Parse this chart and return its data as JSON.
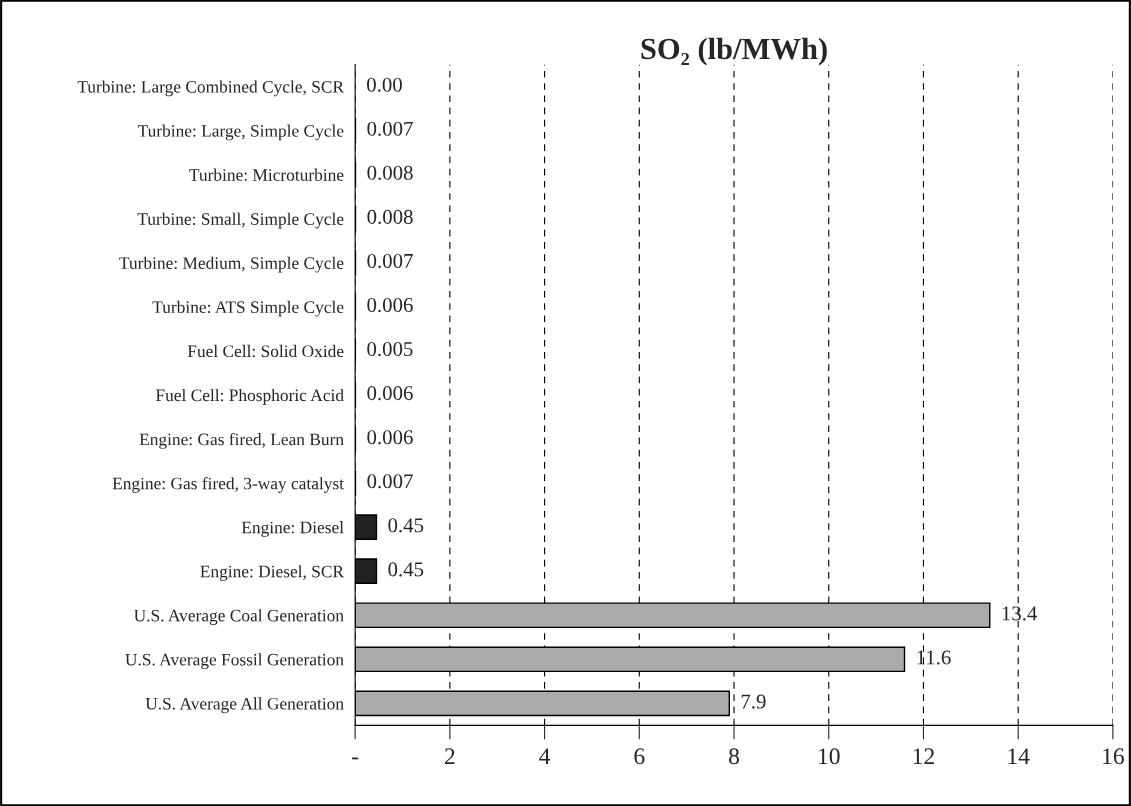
{
  "chart_data": {
    "type": "bar",
    "orientation": "horizontal",
    "title": "SO₂ (lb/MWh)",
    "categories": [
      "Turbine: Large Combined Cycle, SCR",
      "Turbine: Large, Simple Cycle",
      "Turbine: Microturbine",
      "Turbine: Small, Simple Cycle",
      "Turbine: Medium, Simple Cycle",
      "Turbine: ATS Simple Cycle",
      "Fuel Cell: Solid Oxide",
      "Fuel Cell: Phosphoric Acid",
      "Engine: Gas fired, Lean Burn",
      "Engine: Gas fired, 3-way catalyst",
      "Engine: Diesel",
      "Engine: Diesel, SCR",
      "U.S. Average Coal Generation",
      "U.S. Average Fossil Generation",
      "U.S. Average All Generation"
    ],
    "values": [
      0.0,
      0.007,
      0.008,
      0.008,
      0.007,
      0.006,
      0.005,
      0.006,
      0.006,
      0.007,
      0.45,
      0.45,
      13.4,
      11.6,
      7.9
    ],
    "value_labels": [
      "0.00",
      "0.007",
      "0.008",
      "0.008",
      "0.007",
      "0.006",
      "0.005",
      "0.006",
      "0.006",
      "0.007",
      "0.45",
      "0.45",
      "13.4",
      "11.6",
      "7.9"
    ],
    "colors": [
      "#aaaaaa",
      "#aaaaaa",
      "#aaaaaa",
      "#aaaaaa",
      "#aaaaaa",
      "#aaaaaa",
      "#aaaaaa",
      "#aaaaaa",
      "#aaaaaa",
      "#aaaaaa",
      "#222222",
      "#222222",
      "#aaaaaa",
      "#aaaaaa",
      "#aaaaaa"
    ],
    "xlim": [
      0,
      16
    ],
    "xticks": [
      {
        "value": 0,
        "label": "-"
      },
      2,
      4,
      6,
      8,
      10,
      12,
      14,
      16
    ],
    "grid": "x",
    "legend": false
  }
}
